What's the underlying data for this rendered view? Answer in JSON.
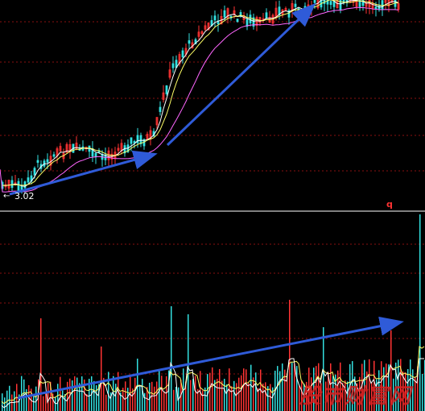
{
  "chart_data": [
    {
      "type": "candlestick",
      "panel": "price",
      "low_label": "3.02",
      "colors": {
        "up": "#ff3333",
        "down": "#33e0e0",
        "ma_short": "#ffffff",
        "ma_mid": "#ffff66",
        "ma_long": "#ff66ff",
        "trend_arrow": "#2f5bd8",
        "grid": "#8a1010"
      },
      "trend_arrows": 2,
      "grid": true
    },
    {
      "type": "bar",
      "panel": "volume",
      "corner_label": "q",
      "colors": {
        "up": "#ff3333",
        "down": "#33e0e0",
        "ma_short": "#ffffff",
        "ma_mid": "#ffff66",
        "trend_arrow": "#2f5bd8",
        "corner_label": "#ff3333"
      },
      "trend_arrows": 1,
      "grid": true
    }
  ],
  "watermark": {
    "text": "股市财富网"
  }
}
